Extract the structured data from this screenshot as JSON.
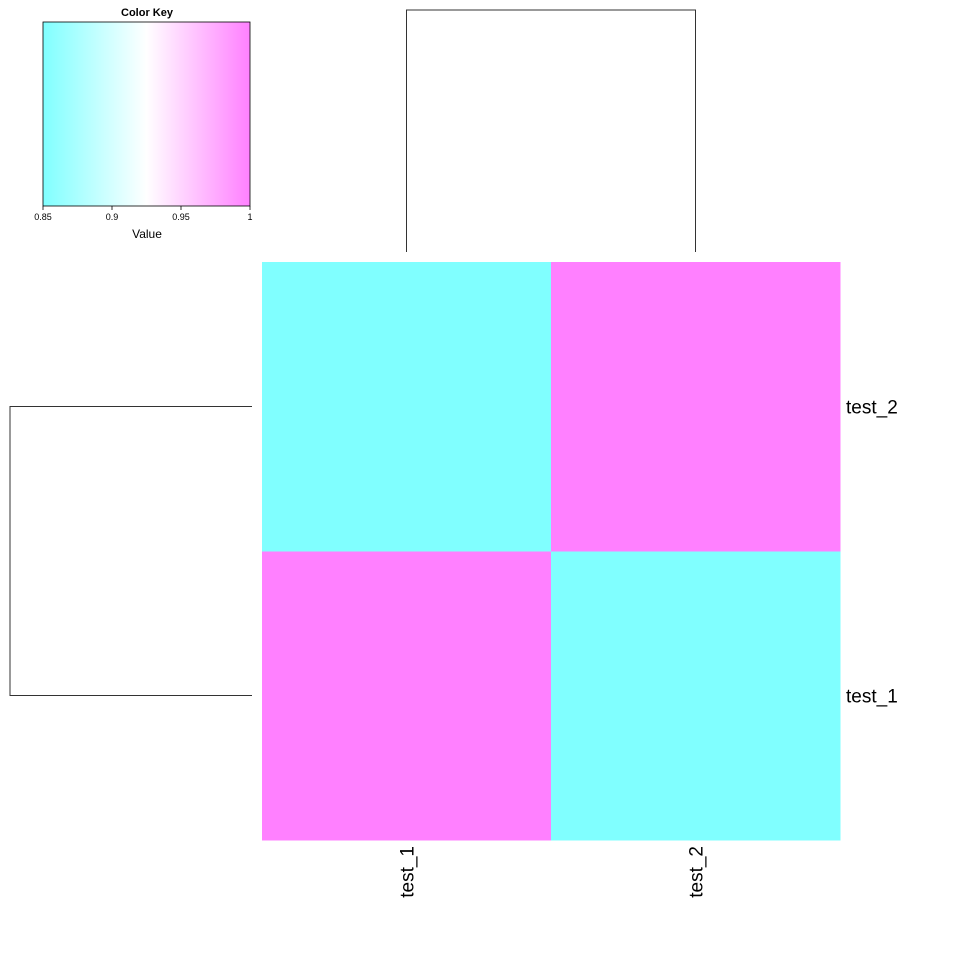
{
  "chart_data": {
    "type": "heatmap",
    "rows": [
      "test_1",
      "test_2"
    ],
    "columns": [
      "test_1",
      "test_2"
    ],
    "values": [
      [
        1.0,
        0.85
      ],
      [
        0.85,
        1.0
      ]
    ],
    "dendrogram": {
      "rows": true,
      "columns": true
    },
    "color_key": {
      "title": "Color Key",
      "xlabel": "Value",
      "range": [
        0.85,
        1.0
      ],
      "ticks": [
        0.85,
        0.9,
        0.95,
        1.0
      ],
      "tick_labels": [
        "0.85",
        "0.9",
        "0.95",
        "1"
      ],
      "colors": {
        "low": "#80ffff",
        "mid": "#ffffff",
        "high": "#ff80ff"
      }
    }
  }
}
